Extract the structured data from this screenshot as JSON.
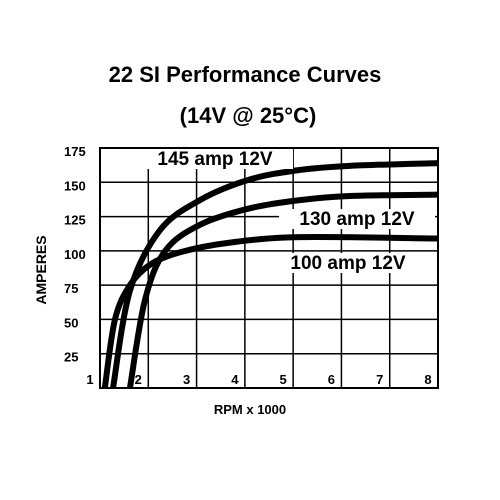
{
  "chart_data": {
    "type": "line",
    "title": "22 SI Performance Curves",
    "subtitle": "(14V @ 25°C)",
    "x_label": "RPM x 1000",
    "y_label": "AMPERES",
    "xlim": [
      1,
      8
    ],
    "xticks": [
      1,
      2,
      3,
      4,
      5,
      6,
      7,
      8
    ],
    "ylim": [
      0,
      175
    ],
    "yticks": [
      25,
      50,
      75,
      100,
      125,
      150,
      175
    ],
    "grid": true,
    "series": [
      {
        "name": "145 amp 12V",
        "color": "#000000",
        "x": [
          1.27,
          1.62,
          2.24,
          3.07,
          4.1,
          5.14,
          6.18,
          8
        ],
        "values": [
          0,
          71,
          115,
          137,
          152,
          159,
          162,
          164
        ]
      },
      {
        "name": "130 amp 12V",
        "color": "#000000",
        "x": [
          1.62,
          1.93,
          2.35,
          3.07,
          4.1,
          5.14,
          6.18,
          8
        ],
        "values": [
          0,
          64,
          100,
          119,
          131,
          137,
          140,
          141
        ]
      },
      {
        "name": "100 amp 12V",
        "color": "#000000",
        "x": [
          1.1,
          1.31,
          1.62,
          2.04,
          2.66,
          3.69,
          5.14,
          8
        ],
        "values": [
          0,
          50,
          75,
          90,
          99,
          106,
          110,
          109
        ]
      }
    ]
  }
}
